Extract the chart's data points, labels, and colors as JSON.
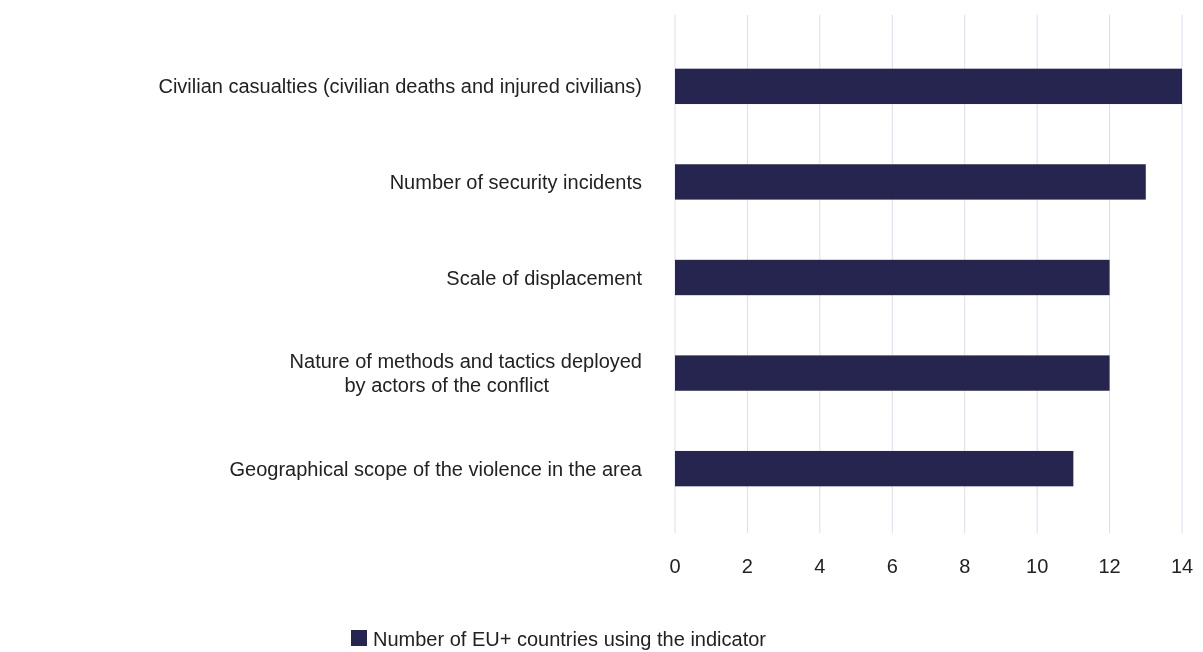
{
  "chart_data": {
    "type": "bar",
    "orientation": "horizontal",
    "categories": [
      "Civilian casualties (civilian deaths and injured civilians)",
      "Number of security incidents",
      "Scale of displacement",
      "Nature of methods and tactics deployed\nby actors of the conflict",
      "Geographical scope of the violence in the area"
    ],
    "series": [
      {
        "name": "Number of EU+ countries using the indicator",
        "color": "#262550",
        "values": [
          14,
          13,
          12,
          12,
          11
        ]
      }
    ],
    "xlim": [
      0,
      14
    ],
    "xticks": [
      0,
      2,
      4,
      6,
      8,
      10,
      12,
      14
    ],
    "grid": "x",
    "legend": "bottom"
  }
}
